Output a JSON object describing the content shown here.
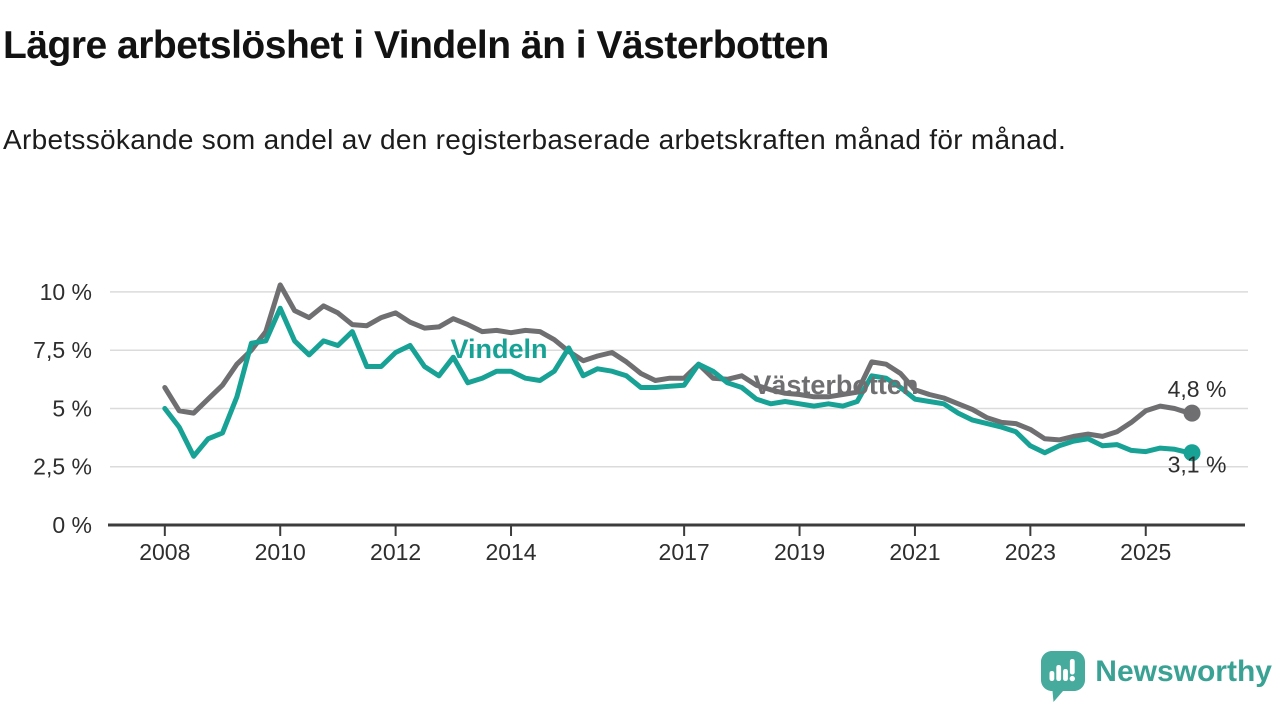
{
  "chart_data": {
    "type": "line",
    "title": "Lägre arbetslöshet i Vindeln än i Västerbotten",
    "subtitle": "Arbetssökande som andel av den registerbaserade arbetskraften månad för månad.",
    "grid": true,
    "legend_position": "inline-labels-on-lines",
    "xlim": [
      2007.05,
      2026.72
    ],
    "ylim": [
      0,
      11.37
    ],
    "ytick_values": [
      0,
      2.5,
      5,
      7.5,
      10
    ],
    "ytick_labels": [
      "0 %",
      "2,5 %",
      "5 %",
      "7,5 %",
      "10 %"
    ],
    "xtick_values": [
      2008,
      2010,
      2012,
      2014,
      2017,
      2019,
      2021,
      2023,
      2025
    ],
    "xtick_labels": [
      "2008",
      "2010",
      "2012",
      "2014",
      "2017",
      "2019",
      "2021",
      "2023",
      "2025"
    ],
    "x_unit": "year (monthly data)",
    "y_unit": "percent of labour force",
    "x": [
      2008.0,
      2008.25,
      2008.5,
      2008.75,
      2009.0,
      2009.25,
      2009.5,
      2009.75,
      2010.0,
      2010.25,
      2010.5,
      2010.75,
      2011.0,
      2011.25,
      2011.5,
      2011.75,
      2012.0,
      2012.25,
      2012.5,
      2012.75,
      2013.0,
      2013.25,
      2013.5,
      2013.75,
      2014.0,
      2014.25,
      2014.5,
      2014.75,
      2015.0,
      2015.25,
      2015.5,
      2015.75,
      2016.0,
      2016.25,
      2016.5,
      2016.75,
      2017.0,
      2017.25,
      2017.5,
      2017.75,
      2018.0,
      2018.25,
      2018.5,
      2018.75,
      2019.0,
      2019.25,
      2019.5,
      2019.75,
      2020.0,
      2020.25,
      2020.5,
      2020.75,
      2021.0,
      2021.25,
      2021.5,
      2021.75,
      2022.0,
      2022.25,
      2022.5,
      2022.75,
      2023.0,
      2023.25,
      2023.5,
      2023.75,
      2024.0,
      2024.25,
      2024.5,
      2024.75,
      2025.0,
      2025.25,
      2025.5,
      2025.75
    ],
    "series": [
      {
        "name": "Västerbotten",
        "color": "#6F6F72",
        "end_label": "4,8 %",
        "last_value": 4.8,
        "label_x": 2018.2,
        "label_y": 5.62,
        "values": [
          5.9,
          4.9,
          4.8,
          5.4,
          6.0,
          6.9,
          7.5,
          8.3,
          10.3,
          9.2,
          8.9,
          9.4,
          9.1,
          8.6,
          8.55,
          8.9,
          9.1,
          8.7,
          8.45,
          8.5,
          8.85,
          8.6,
          8.3,
          8.35,
          8.25,
          8.35,
          8.3,
          7.95,
          7.45,
          7.05,
          7.25,
          7.4,
          7.0,
          6.5,
          6.2,
          6.3,
          6.3,
          6.9,
          6.3,
          6.25,
          6.4,
          6.0,
          5.8,
          5.65,
          5.6,
          5.5,
          5.5,
          5.6,
          5.7,
          7.0,
          6.9,
          6.5,
          5.8,
          5.6,
          5.45,
          5.2,
          4.95,
          4.6,
          4.4,
          4.35,
          4.1,
          3.7,
          3.65,
          3.8,
          3.9,
          3.8,
          4.0,
          4.4,
          4.9,
          5.1,
          5.0,
          4.8
        ]
      },
      {
        "name": "Vindeln",
        "color": "#17A295",
        "end_label": "3,1 %",
        "last_value": 3.1,
        "label_x": 2012.95,
        "label_y": 7.17,
        "values": [
          5.0,
          4.2,
          2.95,
          3.7,
          3.95,
          5.5,
          7.8,
          7.9,
          9.3,
          7.9,
          7.3,
          7.9,
          7.7,
          8.3,
          6.8,
          6.8,
          7.4,
          7.7,
          6.8,
          6.4,
          7.2,
          6.1,
          6.3,
          6.6,
          6.6,
          6.3,
          6.2,
          6.6,
          7.6,
          6.4,
          6.7,
          6.6,
          6.4,
          5.9,
          5.9,
          5.95,
          6.0,
          6.9,
          6.6,
          6.1,
          5.9,
          5.4,
          5.2,
          5.3,
          5.2,
          5.1,
          5.2,
          5.1,
          5.3,
          6.4,
          6.3,
          5.9,
          5.4,
          5.3,
          5.2,
          4.8,
          4.5,
          4.35,
          4.2,
          4.0,
          3.4,
          3.1,
          3.4,
          3.6,
          3.7,
          3.4,
          3.45,
          3.2,
          3.15,
          3.3,
          3.25,
          3.1
        ]
      }
    ]
  },
  "branding": {
    "logo_text": "Newsworthy",
    "logo_text_color": "#3AA294",
    "logo_icon_color": "#46AB9C"
  },
  "colors": {
    "background": "#FFFFFF",
    "axis": "#3C3C3C",
    "gridline": "#DBDBDB",
    "tick_label": "#2E2E2E",
    "title_text": "#121212"
  }
}
